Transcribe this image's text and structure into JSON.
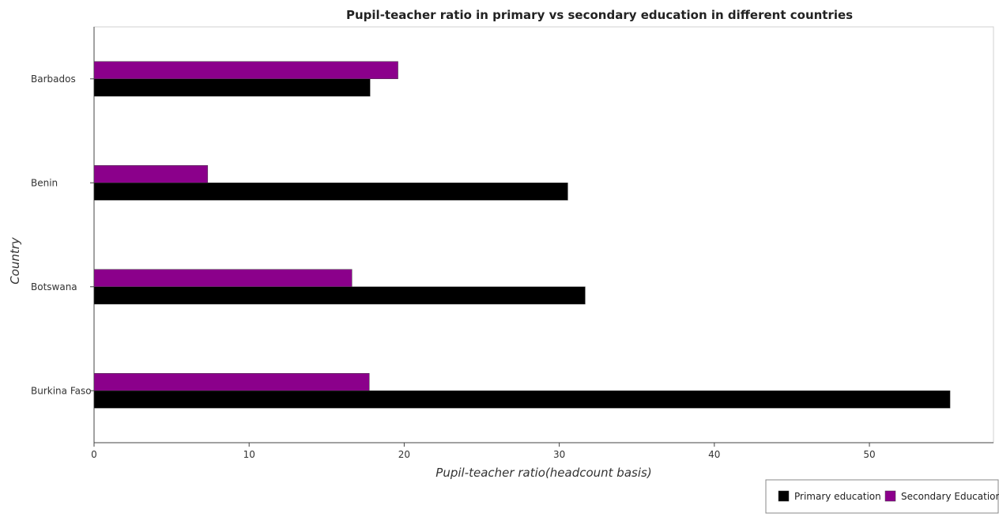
{
  "chart_data": {
    "type": "bar",
    "orientation": "horizontal",
    "title": "Pupil-teacher ratio in primary vs secondary education in different countries",
    "xlabel": "Pupil-teacher ratio(headcount basis)",
    "ylabel": "Country",
    "categories": [
      "Barbados",
      "Benin",
      "Botswana",
      "Burkina Faso"
    ],
    "series": [
      {
        "name": "Primary education",
        "color": "#000000",
        "values": [
          17.8,
          30.55,
          31.67,
          55.2
        ]
      },
      {
        "name": "Secondary Education",
        "color": "#8b008b",
        "values": [
          19.6,
          7.33,
          16.63,
          17.75
        ]
      }
    ],
    "xlim": [
      0,
      58
    ],
    "xticks": [
      0,
      10,
      20,
      30,
      40,
      50
    ],
    "xtick_labels": [
      "0",
      "10",
      "20",
      "30",
      "40",
      "50"
    ],
    "grid": false,
    "legend_position": "bottom-right"
  }
}
